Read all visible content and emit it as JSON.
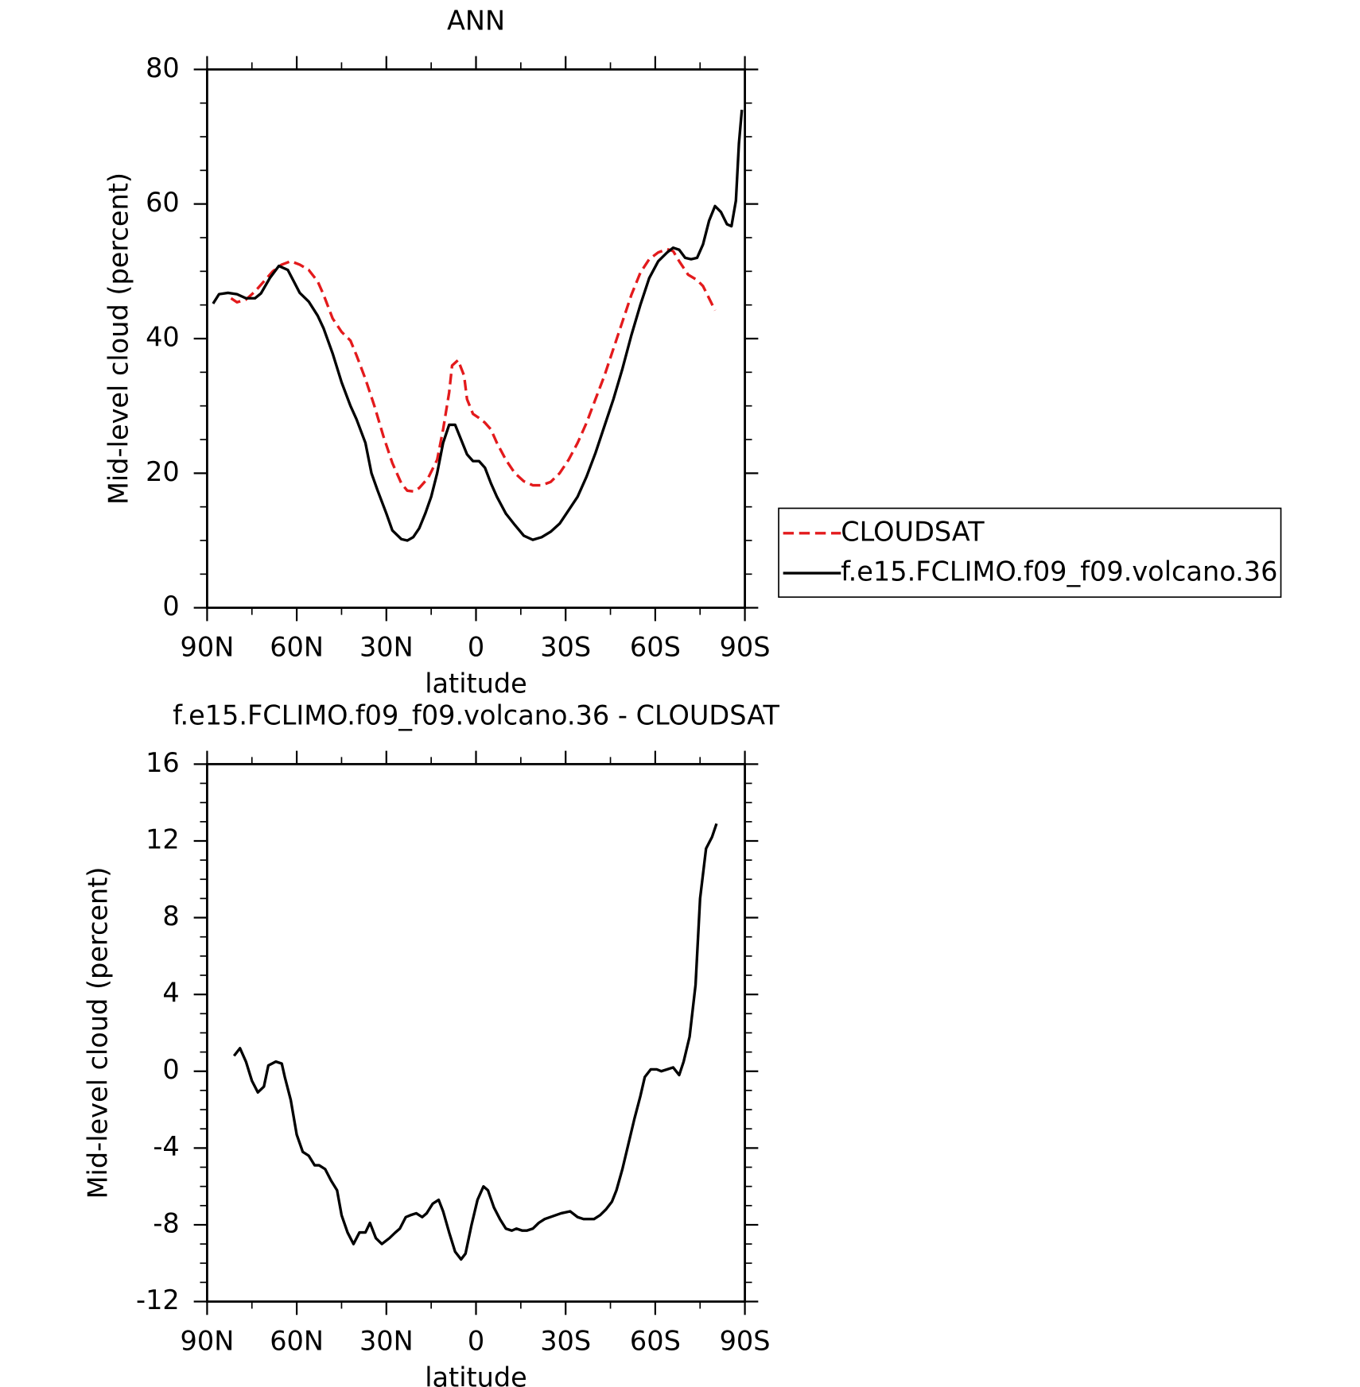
{
  "chart_data": [
    {
      "type": "line",
      "title": "ANN",
      "xlabel": "latitude",
      "ylabel": "Mid-level cloud (percent)",
      "xlim": [
        90,
        -90
      ],
      "ylim": [
        0,
        80
      ],
      "xticks": [
        {
          "value": 90,
          "label": "90N"
        },
        {
          "value": 60,
          "label": "60N"
        },
        {
          "value": 30,
          "label": "30N"
        },
        0,
        {
          "value": -30,
          "label": "30S"
        },
        {
          "value": -60,
          "label": "60S"
        },
        {
          "value": -90,
          "label": "90S"
        }
      ],
      "yticks": [
        0,
        20,
        40,
        60,
        80
      ],
      "legend": "right",
      "series": [
        {
          "name": "CLOUDSAT",
          "color": "#e31a1c",
          "line_style": "dashed",
          "x": [
            82,
            80,
            77,
            74,
            71,
            68,
            65,
            62,
            59,
            56,
            53,
            51,
            48,
            45,
            42,
            40,
            37,
            34,
            31,
            28,
            25,
            23,
            21,
            19,
            16,
            13,
            11,
            9,
            8,
            6,
            4,
            3,
            1,
            -1,
            -3,
            -5,
            -7,
            -10,
            -13,
            -16,
            -19,
            -22,
            -25,
            -28,
            -31,
            -34,
            -37,
            -40,
            -43,
            -46,
            -49,
            -52,
            -55,
            -58,
            -61,
            -64,
            -66,
            -68,
            -71,
            -74,
            -76,
            -78,
            -80
          ],
          "values": [
            46,
            45.4,
            45.8,
            47,
            48.5,
            50,
            51,
            51.5,
            51,
            50.2,
            48.5,
            46.5,
            43,
            41,
            39.7,
            37.5,
            34,
            30,
            25.5,
            21.5,
            18.5,
            17.4,
            17.3,
            17.8,
            19.3,
            22,
            26.5,
            32,
            36,
            36.8,
            34.5,
            31,
            28.8,
            28.2,
            27.5,
            26.5,
            24.5,
            22,
            20,
            18.8,
            18.2,
            18.2,
            18.7,
            20,
            22,
            24.5,
            27.5,
            31,
            34.5,
            38.5,
            42.5,
            46.5,
            49.8,
            51.8,
            52.8,
            53.3,
            53,
            51.5,
            49.5,
            48.7,
            47.8,
            46,
            44.2
          ]
        },
        {
          "name": "f.e15.FCLIMO.f09_f09.volcano.36",
          "color": "#000000",
          "line_style": "solid",
          "x": [
            88,
            86,
            83,
            80,
            77,
            74,
            72,
            69,
            66,
            63,
            61,
            59,
            56,
            53,
            51,
            48,
            45,
            42,
            40,
            37,
            35,
            33,
            30,
            28,
            25,
            23,
            21,
            19,
            17,
            15,
            13,
            11,
            9,
            7,
            5,
            3,
            1,
            -1,
            -3,
            -5,
            -7,
            -10,
            -13,
            -16,
            -19,
            -22,
            -25,
            -28,
            -31,
            -34,
            -37,
            -40,
            -43,
            -46,
            -49,
            -52,
            -55,
            -58,
            -61,
            -64,
            -66,
            -68,
            -70,
            -72,
            -74,
            -76,
            -78,
            -80,
            -82,
            -84,
            -85.5,
            -87,
            -88,
            -89
          ],
          "values": [
            45.2,
            46.6,
            46.8,
            46.6,
            46,
            46,
            46.7,
            49,
            50.8,
            50.2,
            48.5,
            46.8,
            45.5,
            43.4,
            41.5,
            37.8,
            33.5,
            30,
            28,
            24.5,
            20,
            17.5,
            14,
            11.5,
            10.2,
            10,
            10.5,
            11.8,
            14,
            16.5,
            20,
            24.5,
            27.2,
            27.2,
            25,
            22.8,
            21.8,
            21.8,
            20.8,
            18.5,
            16.5,
            14,
            12.3,
            10.7,
            10.1,
            10.5,
            11.3,
            12.5,
            14.5,
            16.5,
            19.5,
            23,
            27,
            31,
            35.5,
            40.5,
            45,
            49,
            51.5,
            52.8,
            53.5,
            53.2,
            52,
            51.8,
            52,
            54,
            57.5,
            59.7,
            58.8,
            57,
            56.7,
            60.5,
            69,
            74
          ]
        }
      ]
    },
    {
      "type": "line",
      "title": "f.e15.FCLIMO.f09_f09.volcano.36 - CLOUDSAT",
      "xlabel": "latitude",
      "ylabel": "Mid-level cloud (percent)",
      "xlim": [
        90,
        -90
      ],
      "ylim": [
        -12,
        16
      ],
      "xticks": [
        {
          "value": 90,
          "label": "90N"
        },
        {
          "value": 60,
          "label": "60N"
        },
        {
          "value": 30,
          "label": "30N"
        },
        0,
        {
          "value": -30,
          "label": "30S"
        },
        {
          "value": -60,
          "label": "60S"
        },
        {
          "value": -90,
          "label": "90S"
        }
      ],
      "yticks": [
        -12,
        -8,
        -4,
        0,
        4,
        8,
        12,
        16
      ],
      "series": [
        {
          "color": "#000000",
          "line_style": "solid",
          "x": [
            81,
            79,
            77,
            75,
            73,
            71,
            69.5,
            67,
            65,
            64,
            62,
            60,
            58,
            56,
            54,
            52.5,
            50.5,
            48.5,
            46.5,
            45,
            43,
            41,
            39,
            37,
            35.5,
            33.5,
            31.5,
            29,
            27,
            25.5,
            23.5,
            22,
            20,
            18,
            16.5,
            14.5,
            12.5,
            11,
            9,
            7,
            5,
            3.5,
            1.5,
            -0.5,
            -2.5,
            -4,
            -6,
            -8,
            -10,
            -12,
            -13.5,
            -15.5,
            -17,
            -19,
            -21,
            -23,
            -28.5,
            -31.5,
            -34,
            -36,
            -39.5,
            -41.5,
            -43.5,
            -45.5,
            -47,
            -49,
            -51,
            -53,
            -55,
            -56.5,
            -58.5,
            -60.5,
            -62,
            -64,
            -66,
            -68,
            -69.5,
            -71.5,
            -73.5,
            -75,
            -77,
            -79,
            -80.5
          ],
          "values": [
            0.8,
            1.2,
            0.5,
            -0.5,
            -1.1,
            -0.8,
            0.3,
            0.5,
            0.4,
            -0.3,
            -1.5,
            -3.3,
            -4.2,
            -4.4,
            -4.9,
            -4.9,
            -5.1,
            -5.7,
            -6.2,
            -7.5,
            -8.4,
            -9,
            -8.4,
            -8.4,
            -7.9,
            -8.7,
            -9,
            -8.7,
            -8.4,
            -8.2,
            -7.6,
            -7.5,
            -7.4,
            -7.6,
            -7.4,
            -6.9,
            -6.7,
            -7.3,
            -8.4,
            -9.4,
            -9.8,
            -9.5,
            -8,
            -6.7,
            -6,
            -6.2,
            -7.1,
            -7.7,
            -8.2,
            -8.3,
            -8.2,
            -8.3,
            -8.3,
            -8.2,
            -7.9,
            -7.7,
            -7.4,
            -7.3,
            -7.6,
            -7.7,
            -7.7,
            -7.5,
            -7.2,
            -6.8,
            -6.2,
            -5.1,
            -3.8,
            -2.5,
            -1.3,
            -0.3,
            0.1,
            0.1,
            0,
            0.1,
            0.2,
            -0.2,
            0.5,
            1.8,
            4.5,
            9,
            11.6,
            12.2,
            12.9
          ]
        }
      ]
    }
  ]
}
